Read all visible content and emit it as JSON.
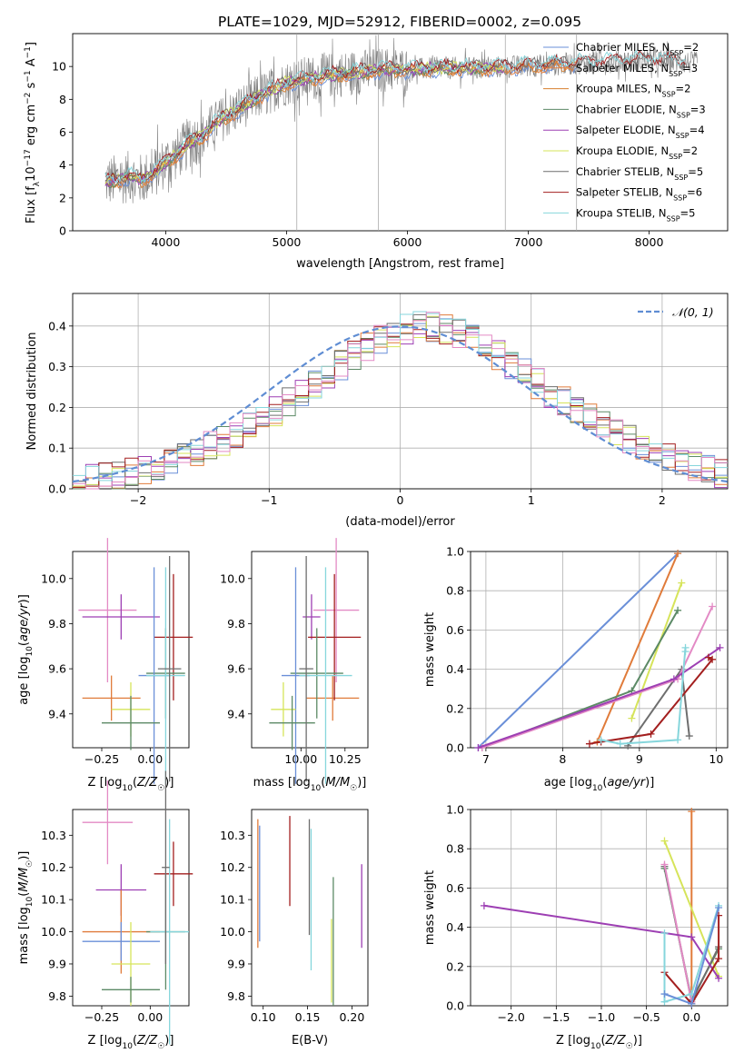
{
  "title": "PLATE=1029, MJD=52912, FIBERID=0002, z=0.095",
  "palette": {
    "Chabrier MILES": "#6a8fd8",
    "Salpeter MILES": "#e07b3a",
    "Kroupa MILES": "#d77f2f",
    "Chabrier ELODIE": "#5c8a66",
    "Salpeter ELODIE": "#9d3fb3",
    "Kroupa ELODIE": "#d6e45a",
    "Chabrier STELIB": "#6e6e6e",
    "Salpeter STELIB": "#a31f1f",
    "Kroupa STELIB": "#86d6dc",
    "pink": "#e38ac5",
    "data": "#7f7f7f"
  },
  "chart_data": [
    {
      "id": "spectrum",
      "type": "line",
      "xlabel": "wavelength [Angstrom, rest frame]",
      "ylabel": "Flux [f",
      "ylabel_full": "Flux [fλ10⁻¹⁷ erg cm⁻² s⁻¹ A⁻¹]",
      "xlim": [
        3230,
        8650
      ],
      "ylim": [
        0,
        12
      ],
      "xticks": [
        4000,
        5000,
        6000,
        7000,
        8000
      ],
      "yticks": [
        0,
        2,
        4,
        6,
        8,
        10
      ],
      "legend_position": "top-right",
      "continuum": {
        "x": [
          3500,
          3600,
          3700,
          3800,
          3900,
          4000,
          4100,
          4200,
          4300,
          4400,
          4600,
          4800,
          5000,
          5200,
          5500,
          5800,
          6000,
          6300,
          6600,
          6900,
          7200,
          7400,
          7700,
          8000,
          8200,
          8400
        ],
        "y": [
          3.0,
          3.1,
          3.3,
          3.1,
          3.5,
          4.2,
          4.7,
          5.4,
          5.7,
          6.5,
          7.4,
          8.3,
          9.0,
          9.3,
          9.6,
          9.8,
          9.8,
          9.9,
          9.9,
          10.0,
          10.1,
          10.2,
          10.3,
          10.4,
          10.3,
          10.2
        ]
      },
      "series": [
        {
          "name": "Chabrier MILES, N",
          "sub": "SSP",
          "tail": "=2",
          "color": "#6a8fd8",
          "xmax": 7400
        },
        {
          "name": "Salpeter MILES, N",
          "sub": "SSP",
          "tail": "=3",
          "color": "#e07b3a",
          "xmax": 7400
        },
        {
          "name": "Kroupa MILES, N",
          "sub": "SSP",
          "tail": "=2",
          "color": "#d77f2f",
          "xmax": 7400
        },
        {
          "name": "Chabrier ELODIE, N",
          "sub": "SSP",
          "tail": "=3",
          "color": "#5c8a66",
          "xmax": 6800
        },
        {
          "name": "Salpeter ELODIE, N",
          "sub": "SSP",
          "tail": "=4",
          "color": "#9d3fb3",
          "xmax": 6800
        },
        {
          "name": "Kroupa ELODIE, N",
          "sub": "SSP",
          "tail": "=2",
          "color": "#d6e45a",
          "xmax": 6800
        },
        {
          "name": "Chabrier STELIB, N",
          "sub": "SSP",
          "tail": "=5",
          "color": "#6e6e6e",
          "xmax": 8300
        },
        {
          "name": "Salpeter STELIB, N",
          "sub": "SSP",
          "tail": "=6",
          "color": "#a31f1f",
          "xmax": 8300
        },
        {
          "name": "Kroupa STELIB, N",
          "sub": "SSP",
          "tail": "=5",
          "color": "#86d6dc",
          "xmax": 8300
        }
      ]
    },
    {
      "id": "residual-hist",
      "type": "bar",
      "xlabel": "(data-model)/error",
      "ylabel": "Normed distribution",
      "xlim": [
        -2.5,
        2.5
      ],
      "ylim": [
        0,
        0.48
      ],
      "xticks": [
        -2,
        -1,
        0,
        1,
        2
      ],
      "xticklabels": [
        "−2",
        "−1",
        "0",
        "1",
        "2"
      ],
      "yticks": [
        0.0,
        0.1,
        0.2,
        0.3,
        0.4
      ],
      "legend": "𝒩(0, 1)",
      "legend_position": "top-right",
      "grid": true,
      "bin_width": 0.1,
      "profile": [
        0.02,
        0.023,
        0.028,
        0.034,
        0.04,
        0.047,
        0.056,
        0.066,
        0.077,
        0.09,
        0.104,
        0.119,
        0.135,
        0.153,
        0.172,
        0.192,
        0.214,
        0.236,
        0.259,
        0.282,
        0.305,
        0.327,
        0.348,
        0.367,
        0.382,
        0.393,
        0.399,
        0.399,
        0.393,
        0.382,
        0.367,
        0.348,
        0.327,
        0.305,
        0.282,
        0.259,
        0.236,
        0.214,
        0.192,
        0.172,
        0.153,
        0.135,
        0.119,
        0.104,
        0.09,
        0.077,
        0.066,
        0.056,
        0.047,
        0.04
      ],
      "gaussian": {
        "mu": 0,
        "sigma": 1
      }
    },
    {
      "id": "age-vs-Z",
      "type": "scatter",
      "xlabel": "Z [log",
      "xlabel_full": "Z [log₁₀(Z/Z☉)]",
      "ylabel_full": "age  [log₁₀(age/yr)]",
      "xlim": [
        -0.4,
        0.2
      ],
      "ylim": [
        9.25,
        10.12
      ],
      "xticks": [
        -0.25,
        0.0
      ],
      "xticklabels": [
        "−0.25",
        "0.00"
      ],
      "yticks": [
        9.4,
        9.6,
        9.8,
        10.0
      ],
      "xticks_minor": [
        -0.25,
        0.0
      ],
      "points": [
        {
          "x": -0.22,
          "y": 9.86,
          "xerr": 0.15,
          "yerr": 0.32,
          "color": "#e38ac5"
        },
        {
          "x": -0.15,
          "y": 9.83,
          "xerr": 0.2,
          "yerr": 0.1,
          "color": "#9d3fb3"
        },
        {
          "x": -0.2,
          "y": 9.47,
          "xerr": 0.15,
          "yerr": 0.1,
          "color": "#e07b3a"
        },
        {
          "x": 0.12,
          "y": 9.74,
          "xerr": 0.1,
          "yerr": 0.28,
          "color": "#a31f1f"
        },
        {
          "x": 0.08,
          "y": 9.58,
          "xerr": 0.1,
          "yerr": 0.2,
          "color": "#5c8a66"
        },
        {
          "x": 0.02,
          "y": 9.57,
          "xerr": 0.08,
          "yerr": 0.48,
          "color": "#6a8fd8"
        },
        {
          "x": 0.08,
          "y": 9.57,
          "xerr": 0.1,
          "yerr": 0.48,
          "color": "#86d6dc"
        },
        {
          "x": -0.1,
          "y": 9.42,
          "xerr": 0.1,
          "yerr": 0.12,
          "color": "#d6e45a"
        },
        {
          "x": -0.1,
          "y": 9.36,
          "xerr": 0.15,
          "yerr": 0.12,
          "color": "#5c8a66"
        },
        {
          "x": 0.1,
          "y": 9.6,
          "xerr": 0.06,
          "yerr": 0.5,
          "color": "#6e6e6e"
        }
      ]
    },
    {
      "id": "age-vs-mass",
      "type": "scatter",
      "xlabel_full": "mass [log₁₀(M/M☉)]",
      "xlim": [
        9.72,
        10.38
      ],
      "ylim": [
        9.25,
        10.12
      ],
      "xticks": [
        10.0,
        10.25
      ],
      "xticklabels": [
        "10.00",
        "10.25"
      ],
      "yticks": [
        9.4,
        9.6,
        9.8,
        10.0
      ],
      "points": [
        {
          "x": 10.2,
          "y": 9.86,
          "xerr": 0.13,
          "yerr": 0.32,
          "color": "#e38ac5"
        },
        {
          "x": 10.06,
          "y": 9.83,
          "xerr": 0.05,
          "yerr": 0.1,
          "color": "#9d3fb3"
        },
        {
          "x": 10.18,
          "y": 9.47,
          "xerr": 0.15,
          "yerr": 0.1,
          "color": "#e07b3a"
        },
        {
          "x": 10.19,
          "y": 9.74,
          "xerr": 0.15,
          "yerr": 0.28,
          "color": "#a31f1f"
        },
        {
          "x": 10.09,
          "y": 9.58,
          "xerr": 0.15,
          "yerr": 0.2,
          "color": "#5c8a66"
        },
        {
          "x": 9.97,
          "y": 9.57,
          "xerr": 0.08,
          "yerr": 0.48,
          "color": "#6a8fd8"
        },
        {
          "x": 10.14,
          "y": 9.57,
          "xerr": 0.15,
          "yerr": 0.48,
          "color": "#86d6dc"
        },
        {
          "x": 9.9,
          "y": 9.42,
          "xerr": 0.07,
          "yerr": 0.12,
          "color": "#d6e45a"
        },
        {
          "x": 9.95,
          "y": 9.36,
          "xerr": 0.13,
          "yerr": 0.12,
          "color": "#5c8a66"
        },
        {
          "x": 10.03,
          "y": 9.6,
          "xerr": 0.04,
          "yerr": 0.5,
          "color": "#6e6e6e"
        }
      ]
    },
    {
      "id": "mw-vs-age",
      "type": "line",
      "xlabel_full": "age  [log₁₀(age/yr)]",
      "ylabel": "mass weight",
      "xlim": [
        6.8,
        10.15
      ],
      "ylim": [
        0,
        1.0
      ],
      "xticks": [
        7,
        8,
        9,
        10
      ],
      "yticks": [
        0.0,
        0.2,
        0.4,
        0.6,
        0.8,
        1.0
      ],
      "grid": true,
      "series": [
        {
          "color": "#6a8fd8",
          "x": [
            6.9,
            9.5
          ],
          "y": [
            0.0,
            0.99
          ]
        },
        {
          "color": "#e07b3a",
          "x": [
            8.45,
            9.5
          ],
          "y": [
            0.03,
            0.99
          ]
        },
        {
          "color": "#d6e45a",
          "x": [
            8.9,
            9.55
          ],
          "y": [
            0.15,
            0.84
          ]
        },
        {
          "color": "#5c8a66",
          "x": [
            6.95,
            8.9,
            9.5
          ],
          "y": [
            0.0,
            0.29,
            0.7
          ]
        },
        {
          "color": "#6e6e6e",
          "x": [
            8.85,
            9.55,
            9.65
          ],
          "y": [
            0.01,
            0.4,
            0.06
          ]
        },
        {
          "color": "#e38ac5",
          "x": [
            6.95,
            9.5,
            9.95
          ],
          "y": [
            0.0,
            0.35,
            0.72
          ]
        },
        {
          "color": "#9d3fb3",
          "x": [
            6.9,
            9.45,
            10.05
          ],
          "y": [
            0.0,
            0.35,
            0.51
          ]
        },
        {
          "color": "#a31f1f",
          "x": [
            8.35,
            8.5,
            9.15,
            9.95,
            9.9
          ],
          "y": [
            0.02,
            0.03,
            0.07,
            0.45,
            0.46
          ]
        },
        {
          "color": "#86d6dc",
          "x": [
            8.5,
            8.75,
            9.5,
            9.6,
            9.6
          ],
          "y": [
            0.04,
            0.02,
            0.04,
            0.51,
            0.49
          ]
        }
      ]
    },
    {
      "id": "mass-vs-Z",
      "type": "scatter",
      "xlabel_full": "Z [log₁₀(Z/Z☉)]",
      "ylabel_full": "mass [log₁₀(M/M☉)]",
      "xlim": [
        -0.4,
        0.2
      ],
      "ylim": [
        9.77,
        10.38
      ],
      "xticks": [
        -0.25,
        0.0
      ],
      "xticklabels": [
        "−0.25",
        "0.00"
      ],
      "yticks": [
        9.8,
        9.9,
        10.0,
        10.1,
        10.2,
        10.3
      ],
      "points": [
        {
          "x": -0.22,
          "y": 10.34,
          "xerr": 0.13,
          "yerr": 0.13,
          "color": "#e38ac5"
        },
        {
          "x": -0.15,
          "y": 10.13,
          "xerr": 0.13,
          "yerr": 0.08,
          "color": "#9d3fb3"
        },
        {
          "x": -0.15,
          "y": 10.0,
          "xerr": 0.2,
          "yerr": 0.13,
          "color": "#e07b3a"
        },
        {
          "x": 0.12,
          "y": 10.18,
          "xerr": 0.1,
          "yerr": 0.1,
          "color": "#a31f1f"
        },
        {
          "x": 0.08,
          "y": 10.0,
          "xerr": 0.1,
          "yerr": 0.18,
          "color": "#5c8a66"
        },
        {
          "x": -0.15,
          "y": 9.97,
          "xerr": 0.2,
          "yerr": 0.06,
          "color": "#6a8fd8"
        },
        {
          "x": 0.1,
          "y": 10.0,
          "xerr": 0.1,
          "yerr": 0.35,
          "color": "#86d6dc"
        },
        {
          "x": -0.1,
          "y": 9.9,
          "xerr": 0.1,
          "yerr": 0.13,
          "color": "#d6e45a"
        },
        {
          "x": -0.1,
          "y": 9.82,
          "xerr": 0.15,
          "yerr": 0.04,
          "color": "#5c8a66"
        },
        {
          "x": 0.08,
          "y": 10.2,
          "xerr": 0.02,
          "yerr": 0.3,
          "color": "#6e6e6e"
        }
      ]
    },
    {
      "id": "mass-vs-EBV",
      "type": "scatter",
      "xlabel": "E(B-V)",
      "xlim": [
        0.087,
        0.218
      ],
      "ylim": [
        9.77,
        10.38
      ],
      "xticks": [
        0.1,
        0.15,
        0.2
      ],
      "xticklabels": [
        "0.10",
        "0.15",
        "0.20"
      ],
      "yticks": [
        9.8,
        9.9,
        10.0,
        10.1,
        10.2,
        10.3
      ],
      "points": [
        {
          "x": 0.094,
          "y": 10.15,
          "yerr": 0.2,
          "color": "#e07b3a"
        },
        {
          "x": 0.096,
          "y": 10.15,
          "yerr": 0.18,
          "color": "#6a8fd8"
        },
        {
          "x": 0.13,
          "y": 10.22,
          "yerr": 0.14,
          "color": "#a31f1f"
        },
        {
          "x": 0.152,
          "y": 10.17,
          "yerr": 0.18,
          "color": "#6e6e6e"
        },
        {
          "x": 0.154,
          "y": 10.1,
          "yerr": 0.22,
          "color": "#86d6dc"
        },
        {
          "x": 0.177,
          "y": 9.91,
          "yerr": 0.13,
          "color": "#d6e45a"
        },
        {
          "x": 0.179,
          "y": 9.97,
          "yerr": 0.2,
          "color": "#5c8a66"
        },
        {
          "x": 0.211,
          "y": 10.08,
          "yerr": 0.13,
          "color": "#9d3fb3"
        }
      ]
    },
    {
      "id": "mw-vs-Z",
      "type": "line",
      "xlabel_full": "Z [log₁₀(Z/Z☉)]",
      "ylabel": "mass weight",
      "xlim": [
        -2.45,
        0.4
      ],
      "ylim": [
        0,
        1.0
      ],
      "xticks": [
        -2.0,
        -1.5,
        -1.0,
        -0.5,
        0.0
      ],
      "xticklabels": [
        "−2.0",
        "−1.5",
        "−1.0",
        "−0.5",
        "0.0"
      ],
      "yticks": [
        0.0,
        0.2,
        0.4,
        0.6,
        0.8,
        1.0
      ],
      "grid": true,
      "series": [
        {
          "color": "#e07b3a",
          "x": [
            0.0,
            0.0
          ],
          "y": [
            0.03,
            0.99
          ]
        },
        {
          "color": "#d6e45a",
          "x": [
            -0.3,
            0.3
          ],
          "y": [
            0.84,
            0.15
          ]
        },
        {
          "color": "#5c8a66",
          "x": [
            -0.3,
            0.0,
            0.3
          ],
          "y": [
            0.7,
            0.03,
            0.29
          ]
        },
        {
          "color": "#6e6e6e",
          "x": [
            -0.3,
            0.0,
            0.3
          ],
          "y": [
            0.71,
            0.02,
            0.3
          ]
        },
        {
          "color": "#e38ac5",
          "x": [
            -0.3,
            0.0
          ],
          "y": [
            0.72,
            0.02
          ]
        },
        {
          "color": "#9d3fb3",
          "x": [
            -2.3,
            0.0,
            0.3
          ],
          "y": [
            0.51,
            0.35,
            0.14
          ]
        },
        {
          "color": "#a31f1f",
          "x": [
            -0.3,
            0.0,
            0.3,
            0.3
          ],
          "y": [
            0.17,
            0.01,
            0.24,
            0.46
          ]
        },
        {
          "color": "#86d6dc",
          "x": [
            -0.3,
            -0.3,
            0.0,
            0.3
          ],
          "y": [
            0.37,
            0.02,
            0.06,
            0.51
          ]
        },
        {
          "color": "#6a8fd8",
          "x": [
            -0.3,
            0.0,
            0.3
          ],
          "y": [
            0.06,
            0.01,
            0.5
          ]
        }
      ]
    }
  ]
}
